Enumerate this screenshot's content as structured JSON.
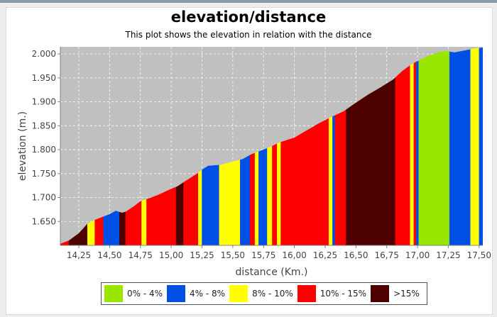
{
  "chart_data": {
    "type": "area",
    "title": "elevation/distance",
    "subtitle": "This plot shows the elevation in relation with the distance",
    "xlabel": "distance (Km.)",
    "ylabel": "elevation (m.)",
    "xlim": [
      14.1,
      17.53
    ],
    "ylim": [
      1.6,
      2.015
    ],
    "x_ticks": [
      14.25,
      14.5,
      14.75,
      15.0,
      15.25,
      15.5,
      15.75,
      16.0,
      16.25,
      16.5,
      16.75,
      17.0,
      17.25,
      17.5
    ],
    "x_tick_labels": [
      "14,25",
      "14,50",
      "14,75",
      "15,00",
      "15,25",
      "15,50",
      "15,75",
      "16,00",
      "16,25",
      "16,50",
      "16,75",
      "17,00",
      "17,25",
      "17,50"
    ],
    "y_ticks": [
      1.65,
      1.7,
      1.75,
      1.8,
      1.85,
      1.9,
      1.95,
      2.0
    ],
    "y_tick_labels": [
      "1.650",
      "1.700",
      "1.750",
      "1.800",
      "1.850",
      "1.900",
      "1.950",
      "2.000"
    ],
    "grid": true,
    "legend_position": "bottom",
    "colors": {
      "plot_background": "#c0c0c0",
      "0-4": "#99e600",
      "4-8": "#0050e6",
      "8-10": "#ffff00",
      "10-15": "#ff0000",
      "gt15": "#4d0000"
    },
    "legend": [
      {
        "key": "0-4",
        "label": "0% - 4%"
      },
      {
        "key": "4-8",
        "label": "4% - 8%"
      },
      {
        "key": "8-10",
        "label": "8% - 10%"
      },
      {
        "key": "10-15",
        "label": "10% - 15%"
      },
      {
        "key": "gt15",
        "label": ">15%"
      }
    ],
    "profile": [
      [
        14.1,
        1.603
      ],
      [
        14.17,
        1.61
      ],
      [
        14.25,
        1.625
      ],
      [
        14.32,
        1.645
      ],
      [
        14.38,
        1.653
      ],
      [
        14.45,
        1.66
      ],
      [
        14.5,
        1.665
      ],
      [
        14.55,
        1.672
      ],
      [
        14.6,
        1.668
      ],
      [
        14.63,
        1.67
      ],
      [
        14.7,
        1.682
      ],
      [
        14.75,
        1.692
      ],
      [
        14.82,
        1.698
      ],
      [
        14.9,
        1.706
      ],
      [
        15.0,
        1.718
      ],
      [
        15.05,
        1.723
      ],
      [
        15.12,
        1.735
      ],
      [
        15.2,
        1.748
      ],
      [
        15.25,
        1.758
      ],
      [
        15.3,
        1.766
      ],
      [
        15.4,
        1.768
      ],
      [
        15.5,
        1.775
      ],
      [
        15.58,
        1.78
      ],
      [
        15.65,
        1.79
      ],
      [
        15.75,
        1.8
      ],
      [
        15.8,
        1.805
      ],
      [
        15.88,
        1.815
      ],
      [
        16.0,
        1.825
      ],
      [
        16.1,
        1.84
      ],
      [
        16.2,
        1.855
      ],
      [
        16.3,
        1.868
      ],
      [
        16.4,
        1.88
      ],
      [
        16.5,
        1.898
      ],
      [
        16.6,
        1.915
      ],
      [
        16.7,
        1.93
      ],
      [
        16.8,
        1.946
      ],
      [
        16.88,
        1.965
      ],
      [
        16.95,
        1.978
      ],
      [
        17.0,
        1.985
      ],
      [
        17.08,
        1.995
      ],
      [
        17.18,
        2.004
      ],
      [
        17.23,
        2.006
      ],
      [
        17.3,
        2.003
      ],
      [
        17.4,
        2.008
      ],
      [
        17.48,
        2.012
      ],
      [
        17.53,
        2.013
      ]
    ],
    "segments": [
      {
        "from": 14.1,
        "to": 14.17,
        "grade": "10-15"
      },
      {
        "from": 14.17,
        "to": 14.32,
        "grade": "gt15"
      },
      {
        "from": 14.32,
        "to": 14.38,
        "grade": "8-10"
      },
      {
        "from": 14.38,
        "to": 14.45,
        "grade": "10-15"
      },
      {
        "from": 14.45,
        "to": 14.58,
        "grade": "4-8"
      },
      {
        "from": 14.58,
        "to": 14.63,
        "grade": "gt15"
      },
      {
        "from": 14.63,
        "to": 14.76,
        "grade": "10-15"
      },
      {
        "from": 14.76,
        "to": 14.8,
        "grade": "8-10"
      },
      {
        "from": 14.8,
        "to": 15.04,
        "grade": "10-15"
      },
      {
        "from": 15.04,
        "to": 15.1,
        "grade": "gt15"
      },
      {
        "from": 15.1,
        "to": 15.22,
        "grade": "10-15"
      },
      {
        "from": 15.22,
        "to": 15.25,
        "grade": "8-10"
      },
      {
        "from": 15.25,
        "to": 15.39,
        "grade": "4-8"
      },
      {
        "from": 15.39,
        "to": 15.56,
        "grade": "8-10"
      },
      {
        "from": 15.56,
        "to": 15.64,
        "grade": "4-8"
      },
      {
        "from": 15.64,
        "to": 15.68,
        "grade": "10-15"
      },
      {
        "from": 15.68,
        "to": 15.71,
        "grade": "8-10"
      },
      {
        "from": 15.71,
        "to": 15.78,
        "grade": "4-8"
      },
      {
        "from": 15.78,
        "to": 15.82,
        "grade": "8-10"
      },
      {
        "from": 15.82,
        "to": 15.86,
        "grade": "10-15"
      },
      {
        "from": 15.86,
        "to": 15.89,
        "grade": "8-10"
      },
      {
        "from": 15.89,
        "to": 16.28,
        "grade": "10-15"
      },
      {
        "from": 16.28,
        "to": 16.31,
        "grade": "8-10"
      },
      {
        "from": 16.31,
        "to": 16.33,
        "grade": "4-8"
      },
      {
        "from": 16.33,
        "to": 16.42,
        "grade": "10-15"
      },
      {
        "from": 16.42,
        "to": 16.82,
        "grade": "gt15"
      },
      {
        "from": 16.82,
        "to": 16.94,
        "grade": "10-15"
      },
      {
        "from": 16.94,
        "to": 16.97,
        "grade": "8-10"
      },
      {
        "from": 16.97,
        "to": 16.99,
        "grade": "10-15"
      },
      {
        "from": 16.99,
        "to": 17.01,
        "grade": "4-8"
      },
      {
        "from": 17.01,
        "to": 17.26,
        "grade": "0-4"
      },
      {
        "from": 17.26,
        "to": 17.43,
        "grade": "4-8"
      },
      {
        "from": 17.43,
        "to": 17.5,
        "grade": "8-10"
      },
      {
        "from": 17.5,
        "to": 17.53,
        "grade": "4-8"
      }
    ]
  }
}
